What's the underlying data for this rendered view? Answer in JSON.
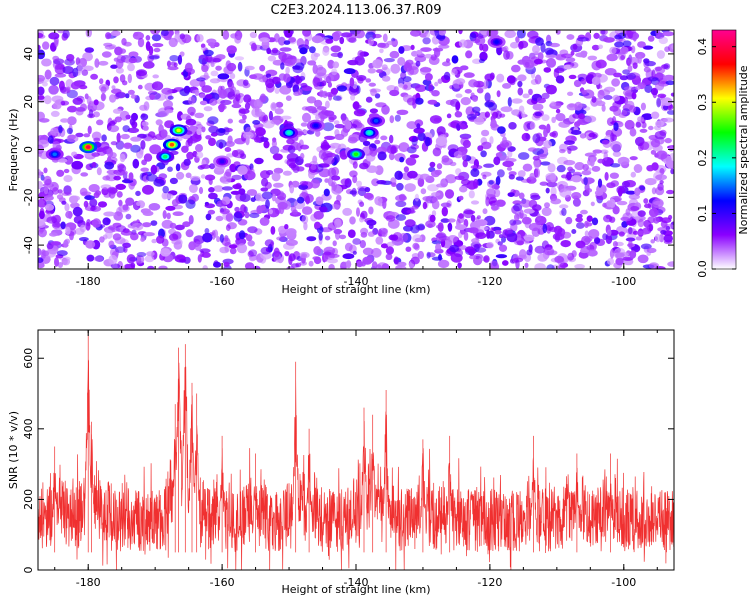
{
  "title": "C2E3.2024.113.06.37.R09",
  "chart_data": [
    {
      "type": "heatmap",
      "xlabel": "Height of straight line (km)",
      "ylabel": "Frequency (Hz)",
      "xlim": [
        -187.5,
        -92.5
      ],
      "ylim": [
        -50,
        50
      ],
      "xticks": [
        -180,
        -160,
        -140,
        -120,
        -100
      ],
      "yticks": [
        -40,
        -20,
        0,
        20,
        40
      ],
      "colorbar": {
        "label": "Normalized spectral amplitude",
        "range": [
          0.0,
          0.43
        ],
        "ticks": [
          0.0,
          0.1,
          0.2,
          0.3,
          0.4
        ],
        "colormap": [
          "#ffffff",
          "#8a00ff",
          "#0000ff",
          "#00ffff",
          "#00ff00",
          "#ffff00",
          "#ff0000",
          "#ff0090"
        ]
      },
      "hotspots": [
        {
          "x": -180,
          "y": 1,
          "value": 0.4
        },
        {
          "x": -167.5,
          "y": 2,
          "value": 0.35
        },
        {
          "x": -166.5,
          "y": 8,
          "value": 0.3
        },
        {
          "x": -168.5,
          "y": -3,
          "value": 0.22
        },
        {
          "x": -150,
          "y": 7,
          "value": 0.2
        },
        {
          "x": -140,
          "y": -2,
          "value": 0.25
        },
        {
          "x": -138,
          "y": 7,
          "value": 0.2
        },
        {
          "x": -185,
          "y": -2,
          "value": 0.15
        },
        {
          "x": -146,
          "y": 10,
          "value": 0.12
        },
        {
          "x": -137,
          "y": 12,
          "value": 0.14
        },
        {
          "x": -119,
          "y": 45,
          "value": 0.12
        },
        {
          "x": -160,
          "y": -5,
          "value": 0.1
        }
      ]
    },
    {
      "type": "line",
      "xlabel": "Height of straight line (km)",
      "ylabel": "SNR (10 * v/v)",
      "xlim": [
        -187.5,
        -92.5
      ],
      "ylim": [
        0,
        680
      ],
      "xticks": [
        -180,
        -160,
        -140,
        -120,
        -100
      ],
      "yticks": [
        0,
        200,
        400,
        600
      ],
      "color": "#f03030",
      "baseline_range": [
        50,
        230
      ],
      "peaks": [
        {
          "x": -180,
          "y": 690
        },
        {
          "x": -179.5,
          "y": 420
        },
        {
          "x": -166.5,
          "y": 630
        },
        {
          "x": -165.5,
          "y": 640
        },
        {
          "x": -167,
          "y": 470
        },
        {
          "x": -164.5,
          "y": 530
        },
        {
          "x": -163.8,
          "y": 500
        },
        {
          "x": -149,
          "y": 590
        },
        {
          "x": -147,
          "y": 400
        },
        {
          "x": -138.8,
          "y": 460
        },
        {
          "x": -137.5,
          "y": 440
        },
        {
          "x": -135.5,
          "y": 510
        },
        {
          "x": -130,
          "y": 370
        },
        {
          "x": -126,
          "y": 380
        },
        {
          "x": -113.5,
          "y": 380
        },
        {
          "x": -107,
          "y": 330
        },
        {
          "x": -102,
          "y": 330
        },
        {
          "x": -185,
          "y": 350
        },
        {
          "x": -160,
          "y": 380
        },
        {
          "x": -155,
          "y": 330
        }
      ]
    }
  ]
}
